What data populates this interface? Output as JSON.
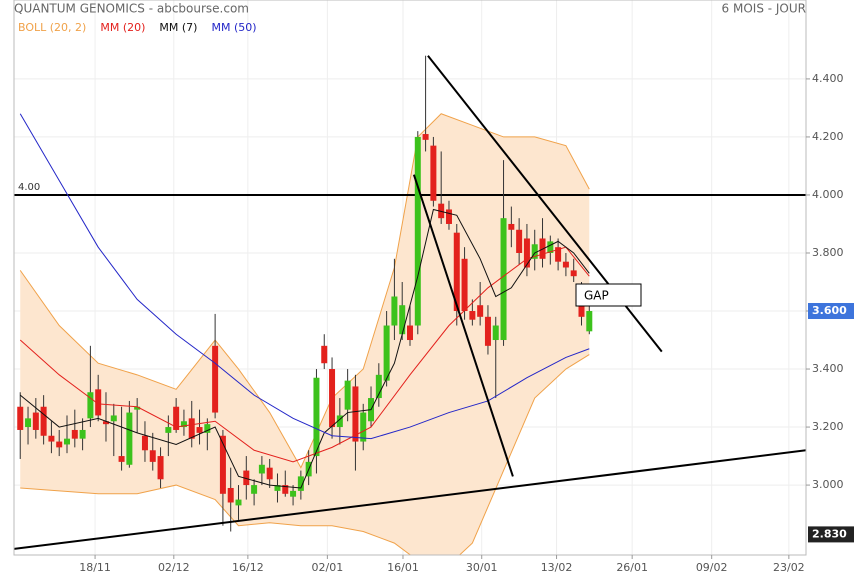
{
  "chart_data": {
    "type": "candlestick",
    "title": "QUANTUM GENOMICS - abcbourse.com",
    "subtitle": "6 MOIS - JOUR",
    "xlim": [
      -0.8,
      100.8
    ],
    "xticks": [
      {
        "value": 9.6,
        "label": "18/11"
      },
      {
        "value": 19.7,
        "label": "02/12"
      },
      {
        "value": 29.2,
        "label": "16/12"
      },
      {
        "value": 39.4,
        "label": "02/01"
      },
      {
        "value": 49.1,
        "label": "16/01"
      },
      {
        "value": 59.2,
        "label": "30/01"
      },
      {
        "value": 68.8,
        "label": "13/02"
      },
      {
        "value": 78.5,
        "label": "26/01"
      },
      {
        "value": 88.7,
        "label": "09/02"
      },
      {
        "value": 98.6,
        "label": "23/02"
      }
    ],
    "ylim": [
      2.759,
      4.672
    ],
    "yticks": [
      {
        "value": 3.0,
        "label": "3.000"
      },
      {
        "value": 3.2,
        "label": "3.200"
      },
      {
        "value": 3.4,
        "label": "3.400"
      },
      {
        "value": 3.6,
        "label": "3.600"
      },
      {
        "value": 3.8,
        "label": "3.800"
      },
      {
        "value": 4.0,
        "label": "4.000"
      },
      {
        "value": 4.2,
        "label": "4.200"
      },
      {
        "value": 4.4,
        "label": "4.400"
      }
    ],
    "grid": true,
    "up_color": "#3cc21c",
    "down_color": "#e3211d",
    "open": [
      3.27,
      3.2,
      3.25,
      3.27,
      3.17,
      3.15,
      3.14,
      3.19,
      3.16,
      3.23,
      3.33,
      3.22,
      3.22,
      3.1,
      3.07,
      3.26,
      3.17,
      3.12,
      3.1,
      3.18,
      3.27,
      3.2,
      3.23,
      3.2,
      3.18,
      3.48,
      3.17,
      2.99,
      2.93,
      3.05,
      2.97,
      3.04,
      3.06,
      2.98,
      3.0,
      2.96,
      2.98,
      3.03,
      3.1,
      3.48,
      3.4,
      3.2,
      3.26,
      3.34,
      3.15,
      3.22,
      3.3,
      3.36,
      3.55,
      3.52,
      3.55,
      3.55,
      4.21,
      4.17,
      3.97,
      3.95,
      3.87,
      3.78,
      3.6,
      3.62,
      3.58,
      3.5,
      3.5,
      3.9,
      3.88,
      3.85,
      3.78,
      3.85,
      3.8,
      3.82,
      3.77,
      3.74,
      3.68,
      3.53
    ],
    "high": [
      3.32,
      3.27,
      3.3,
      3.31,
      3.22,
      3.19,
      3.24,
      3.26,
      3.23,
      3.48,
      3.38,
      3.32,
      3.28,
      3.27,
      3.29,
      3.3,
      3.22,
      3.18,
      3.13,
      3.24,
      3.3,
      3.26,
      3.29,
      3.26,
      3.23,
      3.59,
      3.19,
      3.06,
      3.0,
      3.1,
      3.02,
      3.1,
      3.09,
      3.04,
      3.05,
      3.0,
      3.05,
      3.12,
      3.4,
      3.52,
      3.44,
      3.3,
      3.4,
      3.38,
      3.28,
      3.34,
      3.42,
      3.6,
      3.78,
      3.7,
      3.62,
      4.22,
      4.48,
      4.2,
      4.15,
      3.98,
      3.9,
      3.82,
      3.64,
      3.7,
      3.62,
      3.58,
      4.12,
      3.96,
      3.92,
      3.9,
      3.88,
      3.92,
      3.86,
      3.85,
      3.8,
      3.78,
      3.7,
      3.62
    ],
    "low": [
      3.09,
      3.14,
      3.16,
      3.14,
      3.11,
      3.1,
      3.11,
      3.13,
      3.12,
      3.2,
      3.22,
      3.15,
      3.1,
      3.05,
      3.06,
      3.18,
      3.08,
      3.05,
      2.99,
      3.1,
      3.18,
      3.17,
      3.13,
      3.14,
      3.12,
      3.23,
      2.86,
      2.84,
      2.88,
      2.95,
      2.93,
      3.0,
      2.99,
      2.94,
      2.96,
      2.93,
      2.95,
      3.0,
      3.04,
      3.4,
      3.16,
      3.14,
      3.22,
      3.05,
      3.12,
      3.2,
      3.27,
      3.34,
      3.5,
      3.5,
      3.48,
      3.52,
      4.15,
      3.96,
      3.9,
      3.88,
      3.55,
      3.57,
      3.55,
      3.55,
      3.45,
      3.3,
      3.48,
      3.82,
      3.76,
      3.72,
      3.74,
      3.75,
      3.76,
      3.74,
      3.72,
      3.7,
      3.55,
      3.52
    ],
    "close": [
      3.19,
      3.23,
      3.19,
      3.17,
      3.15,
      3.13,
      3.16,
      3.16,
      3.19,
      3.32,
      3.24,
      3.21,
      3.24,
      3.08,
      3.25,
      3.27,
      3.12,
      3.08,
      3.02,
      3.2,
      3.19,
      3.22,
      3.16,
      3.18,
      3.21,
      3.25,
      2.97,
      2.94,
      2.95,
      3.0,
      3.0,
      3.07,
      3.02,
      3.0,
      2.97,
      2.98,
      3.03,
      3.08,
      3.37,
      3.42,
      3.2,
      3.24,
      3.36,
      3.15,
      3.25,
      3.3,
      3.38,
      3.55,
      3.65,
      3.62,
      3.5,
      4.2,
      4.19,
      3.98,
      3.92,
      3.9,
      3.6,
      3.6,
      3.57,
      3.58,
      3.48,
      3.55,
      3.92,
      3.88,
      3.8,
      3.75,
      3.83,
      3.78,
      3.84,
      3.77,
      3.75,
      3.72,
      3.58,
      3.6
    ],
    "bands": [
      {
        "name": "BOLL (20, 2)",
        "color": "#f0a24a",
        "fill": "#fde6cf",
        "x": [
          0,
          5,
          10,
          15,
          20,
          25,
          28,
          32,
          36,
          40,
          44,
          48,
          51,
          54,
          58,
          62,
          66,
          70,
          73
        ],
        "upper": [
          3.74,
          3.55,
          3.42,
          3.38,
          3.33,
          3.5,
          3.4,
          3.25,
          3.06,
          3.3,
          3.4,
          3.75,
          4.2,
          4.28,
          4.24,
          4.2,
          4.2,
          4.17,
          4.02
        ],
        "lower": [
          2.99,
          2.98,
          2.97,
          2.97,
          3.0,
          2.95,
          2.86,
          2.87,
          2.86,
          2.86,
          2.84,
          2.8,
          2.74,
          2.7,
          2.8,
          3.05,
          3.3,
          3.4,
          3.45
        ]
      }
    ],
    "series": [
      {
        "name": "MM (20)",
        "color": "#e3211d",
        "x": [
          0,
          5,
          10,
          15,
          20,
          25,
          30,
          35,
          40,
          45,
          50,
          55,
          60,
          65,
          70,
          73
        ],
        "values": [
          3.5,
          3.38,
          3.28,
          3.27,
          3.2,
          3.22,
          3.12,
          3.08,
          3.13,
          3.2,
          3.38,
          3.55,
          3.68,
          3.78,
          3.82,
          3.72
        ]
      },
      {
        "name": "MM (7)",
        "color": "#111111",
        "x": [
          0,
          5,
          10,
          15,
          20,
          25,
          28,
          32,
          36,
          39,
          42,
          45,
          48,
          51,
          53,
          56,
          59,
          61,
          63,
          66,
          69,
          71,
          73
        ],
        "values": [
          3.31,
          3.2,
          3.23,
          3.18,
          3.14,
          3.2,
          3.03,
          3.0,
          2.99,
          3.18,
          3.25,
          3.26,
          3.42,
          3.72,
          3.95,
          3.93,
          3.78,
          3.65,
          3.68,
          3.8,
          3.84,
          3.8,
          3.73
        ]
      },
      {
        "name": "MM (50)",
        "color": "#2427c8",
        "x": [
          0,
          5,
          10,
          15,
          20,
          25,
          30,
          35,
          40,
          45,
          50,
          55,
          60,
          65,
          70,
          73
        ],
        "values": [
          4.28,
          4.05,
          3.82,
          3.64,
          3.52,
          3.42,
          3.31,
          3.23,
          3.17,
          3.16,
          3.2,
          3.25,
          3.29,
          3.37,
          3.44,
          3.47
        ]
      }
    ],
    "trend_lines": [
      {
        "x": [
          -0.8,
          100.8
        ],
        "values": [
          2.78,
          3.12
        ]
      },
      {
        "x": [
          52.3,
          82.3
        ],
        "values": [
          4.48,
          3.46
        ]
      },
      {
        "x": [
          50.5,
          63.2
        ],
        "values": [
          4.07,
          3.03
        ]
      }
    ],
    "hline": {
      "value": 4.0,
      "label": "4.00"
    },
    "annotation": "GAP",
    "price_labels": [
      {
        "value": 3.6,
        "label": "3.600",
        "color": "#3d74dc"
      },
      {
        "value": 2.83,
        "label": "2.830",
        "color": "#222222"
      }
    ]
  }
}
